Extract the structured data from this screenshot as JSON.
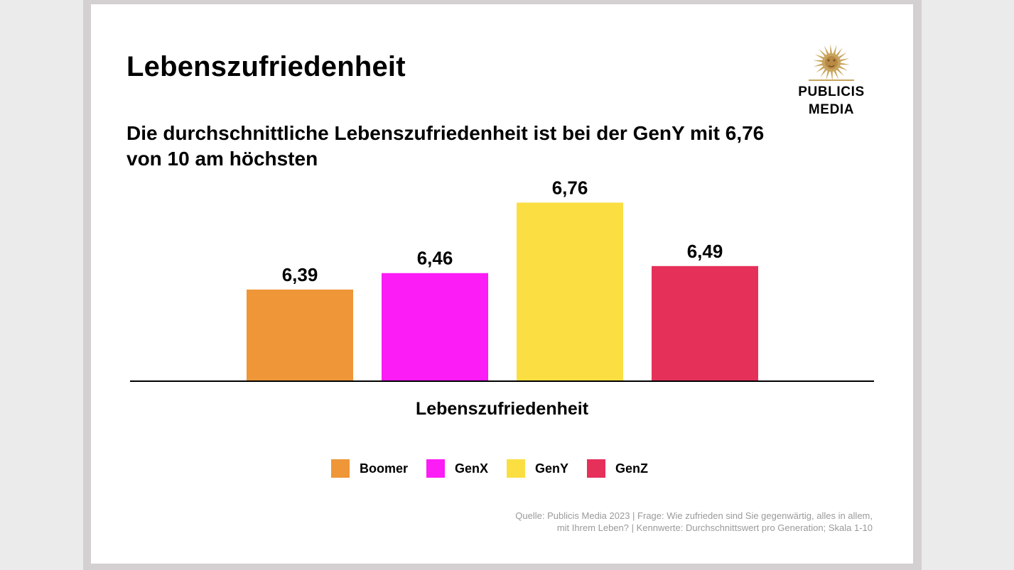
{
  "title": "Lebenszufriedenheit",
  "subtitle": "Die durchschnittliche Lebenszufriedenheit ist bei der GenY mit 6,76 von 10 am höchsten",
  "logo": {
    "line1": "PUBLICIS",
    "line2": "MEDIA",
    "icon": "lion-head-icon",
    "color": "#c9a45f"
  },
  "source": {
    "line1": "Quelle: Publicis Media 2023 | Frage: Wie zufrieden sind Sie gegenwärtig, alles in allem,",
    "line2": "mit Ihrem Leben? | Kennwerte: Durchschnittswert pro Generation; Skala 1-10"
  },
  "chart_data": {
    "type": "bar",
    "categories": [
      "Lebenszufriedenheit"
    ],
    "xlabel": "Lebenszufriedenheit",
    "ylabel": "",
    "series": [
      {
        "name": "Boomer",
        "value": 6.39,
        "label": "6,39",
        "color": "#ee9638"
      },
      {
        "name": "GenX",
        "value": 6.46,
        "label": "6,46",
        "color": "#fc1cf5"
      },
      {
        "name": "GenY",
        "value": 6.76,
        "label": "6,76",
        "color": "#fbdf42"
      },
      {
        "name": "GenZ",
        "value": 6.49,
        "label": "6,49",
        "color": "#e5305a"
      }
    ],
    "ylim": [
      6.0,
      7.0
    ],
    "grid": false,
    "legend": "bottom"
  }
}
